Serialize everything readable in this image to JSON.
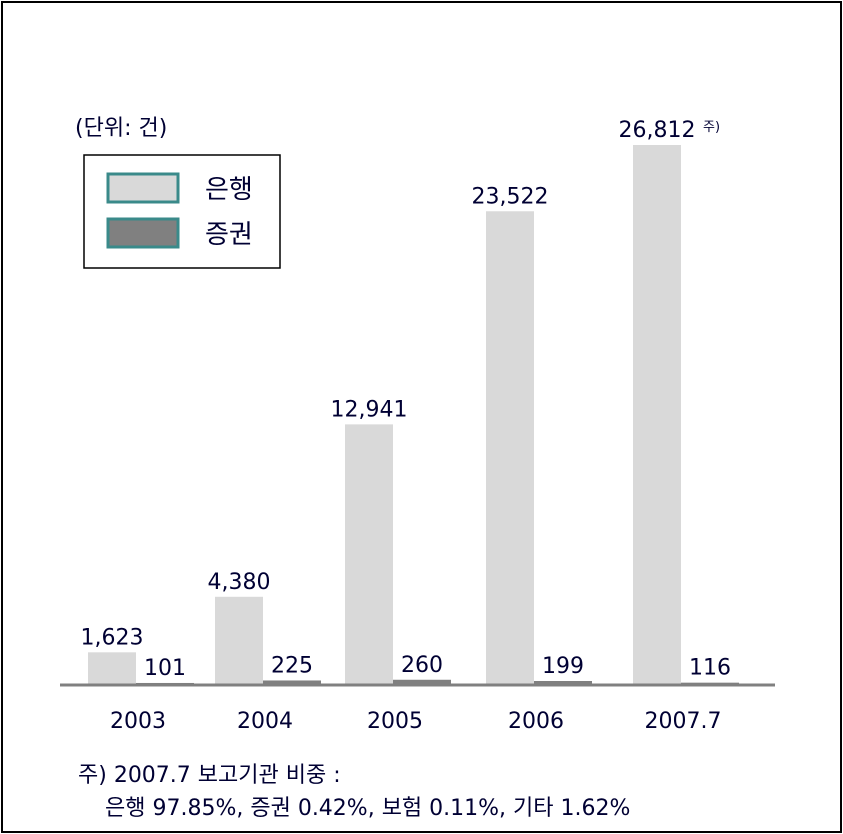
{
  "chart_data": {
    "type": "bar",
    "unit_label": "(단위: 건)",
    "categories": [
      "2003",
      "2004",
      "2005",
      "2006",
      "2007.7"
    ],
    "series": [
      {
        "name": "은행",
        "color": "#d9d9d9",
        "values": [
          1623,
          4380,
          12941,
          23522,
          26812
        ],
        "value_labels": [
          "1,623",
          "4,380",
          "12,941",
          "23,522",
          "26,812"
        ]
      },
      {
        "name": "증권",
        "color": "#808080",
        "values": [
          101,
          225,
          260,
          199,
          116
        ]
      }
    ],
    "annotation": "주)",
    "legend": "upper left",
    "footnote": [
      "주) 2007.7 보고기관 비중 :",
      "은행 97.85%, 증권 0.42%, 보험 0.11%, 기타 1.62%"
    ]
  }
}
